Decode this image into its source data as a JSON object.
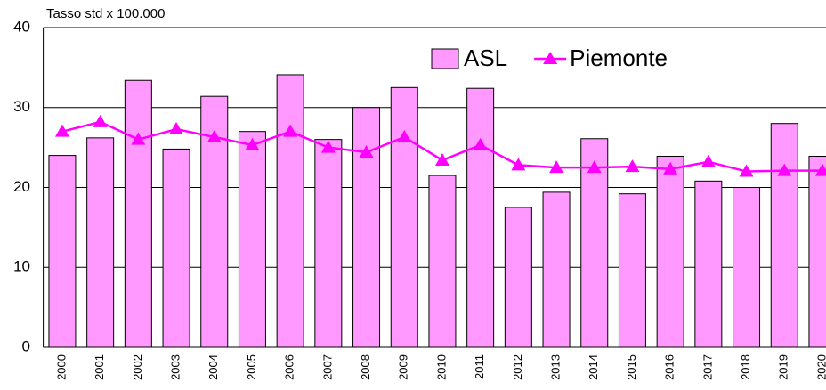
{
  "chart_data": {
    "type": "bar-line",
    "y_label": "Tasso std x 100.000",
    "categories": [
      "2000",
      "2001",
      "2002",
      "2003",
      "2004",
      "2005",
      "2006",
      "2007",
      "2008",
      "2009",
      "2010",
      "2011",
      "2012",
      "2013",
      "2014",
      "2015",
      "2016",
      "2017",
      "2018",
      "2019",
      "2020"
    ],
    "series": [
      {
        "name": "ASL",
        "type": "bar",
        "color": "#ff99ff",
        "values": [
          24.0,
          26.2,
          33.4,
          24.8,
          31.4,
          27.0,
          34.1,
          26.0,
          30.0,
          32.5,
          21.5,
          32.4,
          17.5,
          19.4,
          26.1,
          19.2,
          23.9,
          20.8,
          20.0,
          28.0,
          23.9
        ]
      },
      {
        "name": "Piemonte",
        "type": "line",
        "color": "#ff00ff",
        "values": [
          27.0,
          28.2,
          26.0,
          27.3,
          26.3,
          25.3,
          27.0,
          25.0,
          24.4,
          26.3,
          23.4,
          25.3,
          22.8,
          22.5,
          22.5,
          22.6,
          22.3,
          23.2,
          22.0,
          22.1,
          22.1
        ]
      }
    ],
    "ylim": [
      0,
      40
    ],
    "yticks": [
      0,
      10,
      20,
      30,
      40
    ],
    "grid": true,
    "legend": "top-right"
  }
}
